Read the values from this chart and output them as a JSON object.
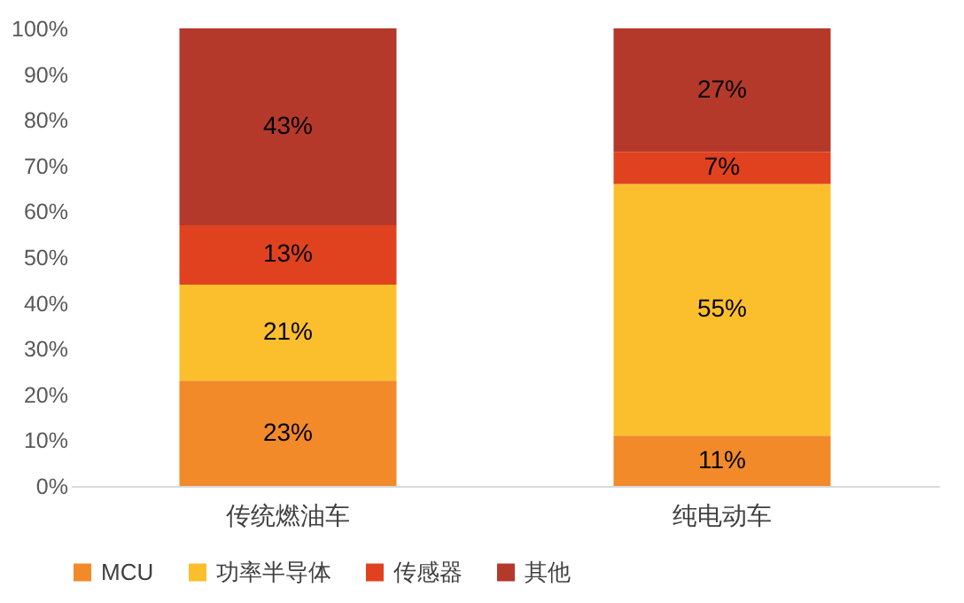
{
  "chart_data": {
    "type": "bar",
    "stacked": true,
    "categories": [
      "传统燃油车",
      "纯电动车"
    ],
    "series": [
      {
        "name": "MCU",
        "color": "#f28a2a",
        "values": [
          23,
          11
        ],
        "value_labels": [
          "23%",
          "11%"
        ]
      },
      {
        "name": "功率半导体",
        "color": "#fbbf2d",
        "values": [
          21,
          55
        ],
        "value_labels": [
          "21%",
          "55%"
        ]
      },
      {
        "name": "传感器",
        "color": "#e0421f",
        "values": [
          13,
          7
        ],
        "value_labels": [
          "13%",
          "7%"
        ]
      },
      {
        "name": "其他",
        "color": "#b5392b",
        "values": [
          43,
          27
        ],
        "value_labels": [
          "43%",
          "27%"
        ]
      }
    ],
    "ylim": [
      0,
      100
    ],
    "yticks": [
      {
        "value": 0,
        "label": "0%"
      },
      {
        "value": 10,
        "label": "10%"
      },
      {
        "value": 20,
        "label": "20%"
      },
      {
        "value": 30,
        "label": "30%"
      },
      {
        "value": 40,
        "label": "40%"
      },
      {
        "value": 50,
        "label": "50%"
      },
      {
        "value": 60,
        "label": "60%"
      },
      {
        "value": 70,
        "label": "70%"
      },
      {
        "value": 80,
        "label": "80%"
      },
      {
        "value": 90,
        "label": "90%"
      },
      {
        "value": 100,
        "label": "100%"
      }
    ],
    "legend": "bottom"
  }
}
